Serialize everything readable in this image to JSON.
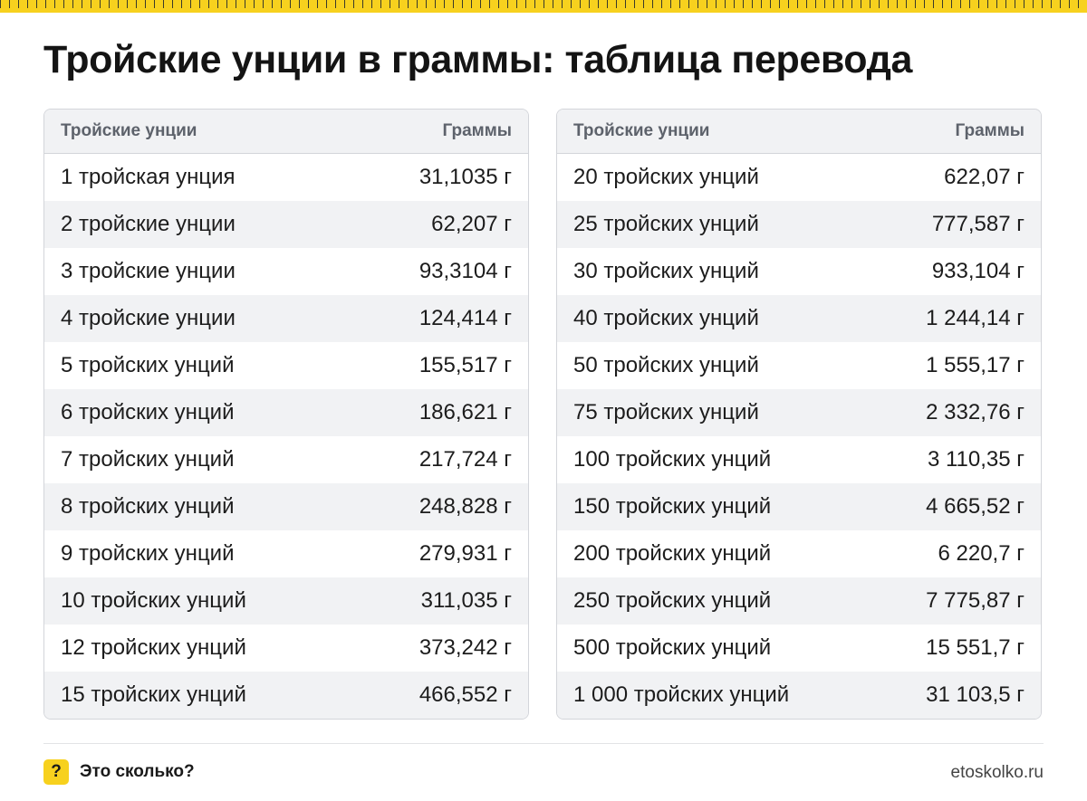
{
  "title": "Тройские унции в граммы: таблица перевода",
  "colors": {
    "accent": "#f7d11e",
    "stripe": "#f1f2f4",
    "border": "#d3d5da",
    "header_text": "#5d626b"
  },
  "table_left": {
    "header": {
      "col1": "Тройские унции",
      "col2": "Граммы"
    },
    "rows": [
      {
        "label": "1 тройская унция",
        "value": "31,1035 г"
      },
      {
        "label": "2 тройские унции",
        "value": "62,207 г"
      },
      {
        "label": "3 тройские унции",
        "value": "93,3104 г"
      },
      {
        "label": "4 тройские унции",
        "value": "124,414 г"
      },
      {
        "label": "5 тройских унций",
        "value": "155,517 г"
      },
      {
        "label": "6 тройских унций",
        "value": "186,621 г"
      },
      {
        "label": "7 тройских унций",
        "value": "217,724 г"
      },
      {
        "label": "8 тройских унций",
        "value": "248,828 г"
      },
      {
        "label": "9 тройских унций",
        "value": "279,931 г"
      },
      {
        "label": "10 тройских унций",
        "value": "311,035 г"
      },
      {
        "label": "12 тройских унций",
        "value": "373,242 г"
      },
      {
        "label": "15 тройских унций",
        "value": "466,552 г"
      }
    ]
  },
  "table_right": {
    "header": {
      "col1": "Тройские унции",
      "col2": "Граммы"
    },
    "rows": [
      {
        "label": "20 тройских унций",
        "value": "622,07 г"
      },
      {
        "label": "25 тройских унций",
        "value": "777,587 г"
      },
      {
        "label": "30 тройских унций",
        "value": "933,104 г"
      },
      {
        "label": "40 тройских унций",
        "value": "1 244,14 г"
      },
      {
        "label": "50 тройских унций",
        "value": "1 555,17 г"
      },
      {
        "label": "75 тройских унций",
        "value": "2 332,76 г"
      },
      {
        "label": "100 тройских унций",
        "value": "3 110,35 г"
      },
      {
        "label": "150 тройских унций",
        "value": "4 665,52 г"
      },
      {
        "label": "200 тройских унций",
        "value": "6 220,7 г"
      },
      {
        "label": "250 тройских унций",
        "value": "7 775,87 г"
      },
      {
        "label": "500 тройских унций",
        "value": "15 551,7 г"
      },
      {
        "label": "1 000 тройских унций",
        "value": "31 103,5 г"
      }
    ]
  },
  "footer": {
    "badge": "?",
    "badge_icon": "question-mark-icon",
    "brand": "Это сколько?",
    "site": "etoskolko.ru"
  }
}
